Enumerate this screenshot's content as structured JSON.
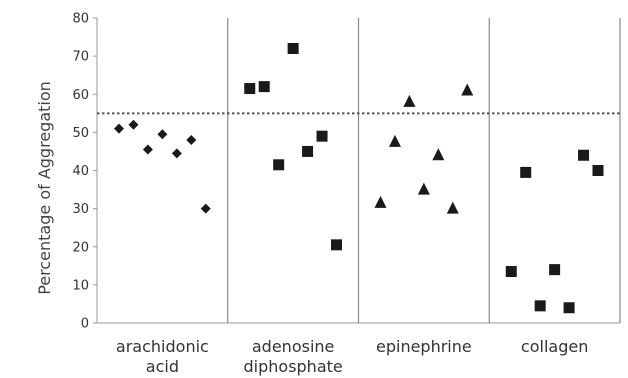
{
  "chart_data": {
    "type": "scatter",
    "ylabel": "Percentage of Aggregation",
    "ylim": [
      0,
      80
    ],
    "yticks": [
      "0",
      "10",
      "20",
      "30",
      "40",
      "50",
      "60",
      "70",
      "80"
    ],
    "threshold": 55,
    "categories": [
      {
        "lines": [
          "arachidonic",
          "acid"
        ],
        "marker": "diamond",
        "values": [
          51,
          52,
          45.5,
          49.5,
          44.5,
          48,
          30
        ]
      },
      {
        "lines": [
          "adenosine",
          "diphosphate"
        ],
        "marker": "square",
        "values": [
          61.5,
          62,
          41.5,
          72,
          45,
          49,
          20.5
        ]
      },
      {
        "lines": [
          "epinephrine"
        ],
        "marker": "triangle",
        "values": [
          31.5,
          47.5,
          58,
          35,
          44,
          30,
          61
        ]
      },
      {
        "lines": [
          "collagen"
        ],
        "marker": "square",
        "values": [
          13.5,
          39.5,
          4.5,
          14,
          4,
          44,
          40
        ]
      }
    ],
    "colors": {
      "marker": "#1a1a1a",
      "axis": "#999999",
      "divider": "#888888",
      "threshold": "#555555"
    }
  }
}
